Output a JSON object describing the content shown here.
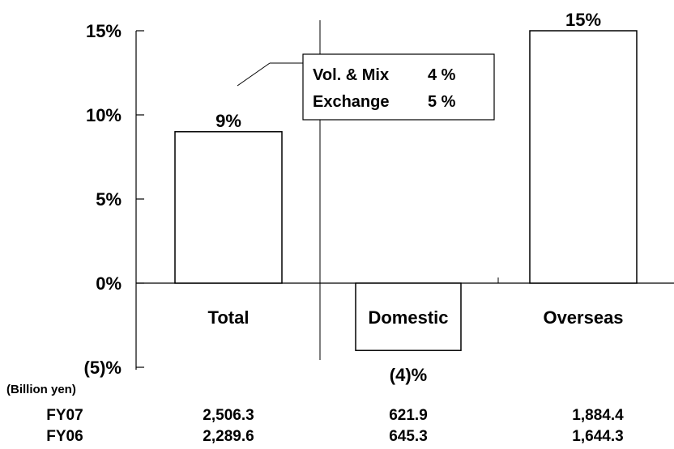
{
  "chart_data": {
    "type": "bar",
    "categories": [
      "Total",
      "Domestic",
      "Overseas"
    ],
    "values": [
      9,
      -4,
      15
    ],
    "value_labels": [
      "9%",
      "(4)%",
      "15%"
    ],
    "ylim": [
      -5,
      15
    ],
    "yticks": [
      {
        "value": 15,
        "label": "15%"
      },
      {
        "value": 10,
        "label": "10%"
      },
      {
        "value": 5,
        "label": "5%"
      },
      {
        "value": 0,
        "label": "0%"
      },
      {
        "value": -5,
        "label": "(5)%"
      }
    ],
    "grid": false,
    "annotation": {
      "line1_name": "Vol. & Mix",
      "line1_value": "4 %",
      "line2_name": "Exchange",
      "line2_value": "5 %"
    },
    "table": {
      "unit_label": "(Billion yen)",
      "rows": [
        {
          "label": "FY07",
          "values": [
            "2,506.3",
            "621.9",
            "1,884.4"
          ]
        },
        {
          "label": "FY06",
          "values": [
            "2,289.6",
            "645.3",
            "1,644.3"
          ]
        }
      ]
    }
  }
}
